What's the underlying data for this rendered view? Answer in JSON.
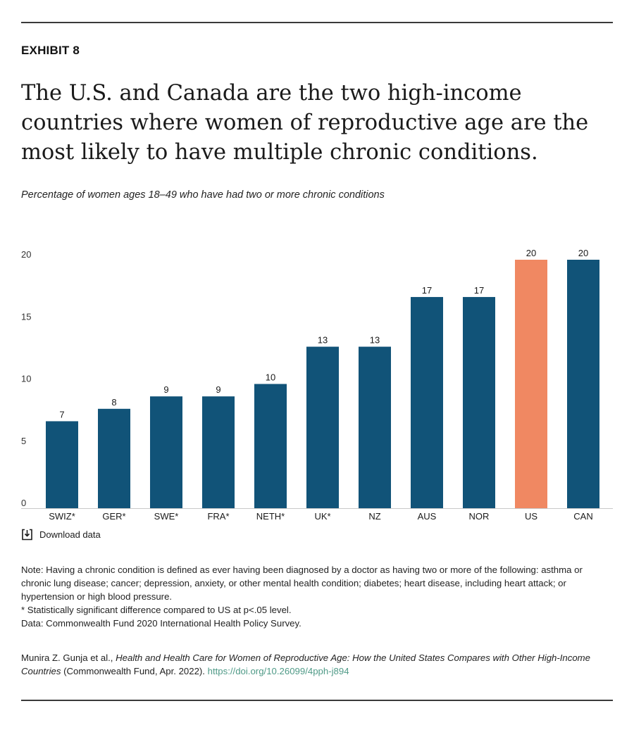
{
  "header": {
    "exhibit_label": "EXHIBIT 8",
    "title": "The U.S. and Canada are the two high-income countries where women of reproductive age are the most likely to have multiple chronic conditions.",
    "subtitle": "Percentage of women ages 18–49 who have had two or more chronic conditions"
  },
  "chart_data": {
    "type": "bar",
    "title": "The U.S. and Canada are the two high-income countries where women of reproductive age are the most likely to have multiple chronic conditions.",
    "ylabel": "Percentage of women ages 18–49 who have had two or more chronic conditions",
    "xlabel": "",
    "categories": [
      "SWIZ*",
      "GER*",
      "SWE*",
      "FRA*",
      "NETH*",
      "UK*",
      "NZ",
      "AUS",
      "NOR",
      "US",
      "CAN"
    ],
    "values": [
      7,
      8,
      9,
      9,
      10,
      13,
      13,
      17,
      17,
      20,
      20
    ],
    "ylim": [
      0,
      20
    ],
    "yticks": [
      0,
      5,
      10,
      15,
      20
    ],
    "grid": false,
    "colors": {
      "default": "#115378",
      "highlight": "#f08862",
      "highlight_category": "US"
    }
  },
  "download": {
    "label": "Download data",
    "icon": "download-icon"
  },
  "notes": {
    "definition": "Note: Having a chronic condition is defined as ever having been diagnosed by a doctor as having two or more of the following: asthma or chronic lung disease; cancer; depression, anxiety, or other mental health condition; diabetes; heart disease, including heart attack; or hypertension or high blood pressure.",
    "significance": "* Statistically significant difference compared to US at p<.05 level.",
    "data_source": "Data: Commonwealth Fund 2020 International Health Policy Survey."
  },
  "citation": {
    "authors": "Munira Z. Gunja et al., ",
    "report_title": "Health and Health Care for Women of Reproductive Age: How the United States Compares with Other High-Income Countries",
    "publisher": " (Commonwealth Fund, Apr. 2022). ",
    "link_text": "https://doi.org/10.26099/4pph-j894"
  }
}
